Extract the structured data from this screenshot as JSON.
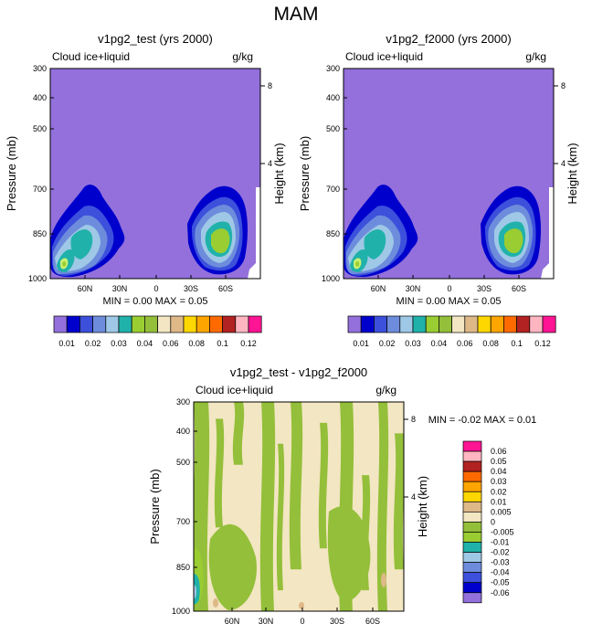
{
  "page_title": "MAM",
  "colors": {
    "c_m06": "#9370db",
    "c_m05": "#0000cd",
    "c_m04": "#3c50dc",
    "c_m03": "#6e8cdc",
    "c_m02": "#9ec8e6",
    "c_m01": "#20b2aa",
    "c_m005": "#9acd32",
    "c_0": "#94bf3a",
    "c_005": "#f3e6c3",
    "c_01": "#deb887",
    "c_02": "#ffd700",
    "c_03": "#ffa500",
    "c_04": "#ff6a00",
    "c_05": "#b22222",
    "c_06": "#ffb6c1",
    "c_07": "#ff1493",
    "lime": "#c8f06e"
  },
  "chart_data": [
    {
      "type": "heatmap",
      "title": "v1pg2_test (yrs 2000)",
      "left_label": "Cloud ice+liquid",
      "right_label": "g/kg",
      "ylabel": "Pressure (mb)",
      "ylabel_right": "Height (km)",
      "x_ticks": [
        "60N",
        "30N",
        "0",
        "30S",
        "60S"
      ],
      "y_ticks": [
        "300",
        "400",
        "500",
        "700",
        "850",
        "1000"
      ],
      "y_right_ticks": [
        "8",
        "4"
      ],
      "stats": "MIN =   0.00   MAX =   0.05",
      "levels": [
        "0.01",
        "0.02",
        "0.03",
        "0.04",
        "0.06",
        "0.08",
        "0.1",
        "0.12"
      ]
    },
    {
      "type": "heatmap",
      "title": "v1pg2_f2000 (yrs 2000)",
      "left_label": "Cloud ice+liquid",
      "right_label": "g/kg",
      "ylabel": "Pressure (mb)",
      "ylabel_right": "Height (km)",
      "x_ticks": [
        "60N",
        "30N",
        "0",
        "30S",
        "60S"
      ],
      "y_ticks": [
        "300",
        "400",
        "500",
        "700",
        "850",
        "1000"
      ],
      "y_right_ticks": [
        "8",
        "4"
      ],
      "stats": "MIN =   0.00   MAX =   0.05",
      "levels": [
        "0.01",
        "0.02",
        "0.03",
        "0.04",
        "0.06",
        "0.08",
        "0.1",
        "0.12"
      ]
    },
    {
      "type": "heatmap",
      "title": "v1pg2_test - v1pg2_f2000",
      "left_label": "Cloud ice+liquid",
      "right_label": "g/kg",
      "ylabel": "Pressure (mb)",
      "ylabel_right": "Height (km)",
      "x_ticks": [
        "60N",
        "30N",
        "0",
        "30S",
        "60S"
      ],
      "y_ticks": [
        "300",
        "400",
        "500",
        "700",
        "850",
        "1000"
      ],
      "y_right_ticks": [
        "8",
        "4"
      ],
      "stats": "MIN =  -0.02   MAX =   0.01",
      "levels": [
        "0.06",
        "0.05",
        "0.04",
        "0.03",
        "0.02",
        "0.01",
        "0.005",
        "0",
        "-0.005",
        "-0.01",
        "-0.02",
        "-0.03",
        "-0.04",
        "-0.05",
        "-0.06"
      ]
    }
  ]
}
